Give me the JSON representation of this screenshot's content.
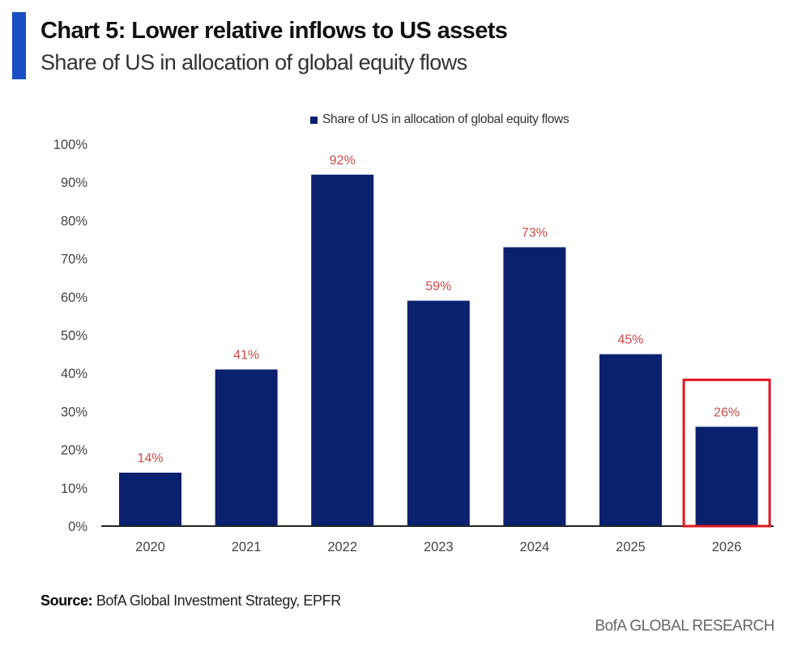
{
  "header": {
    "title": "Chart 5: Lower relative inflows to US assets",
    "subtitle": "Share of US in allocation of global equity flows"
  },
  "colors": {
    "accent": "#1a4fc4",
    "bar": "#0a2170",
    "data_label": "#d04a4a",
    "highlight_box": "#e0141e",
    "axis_line": "#222222",
    "tick_label": "#444444"
  },
  "chart_data": {
    "type": "bar",
    "title": "Chart 5: Lower relative inflows to US assets",
    "subtitle": "Share of US in allocation of global equity flows",
    "categories": [
      "2020",
      "2021",
      "2022",
      "2023",
      "2024",
      "2025",
      "2026"
    ],
    "series": [
      {
        "name": "Share of US in allocation of global equity flows",
        "values": [
          14,
          41,
          92,
          59,
          73,
          45,
          26
        ],
        "labels": [
          "14%",
          "41%",
          "92%",
          "59%",
          "73%",
          "45%",
          "26%"
        ]
      }
    ],
    "xlabel": "",
    "ylabel": "",
    "ylim": [
      0,
      100
    ],
    "yticks": [
      0,
      10,
      20,
      30,
      40,
      50,
      60,
      70,
      80,
      90,
      100
    ],
    "ytick_labels": [
      "0%",
      "10%",
      "20%",
      "30%",
      "40%",
      "50%",
      "60%",
      "70%",
      "80%",
      "90%",
      "100%"
    ],
    "grid": false,
    "legend": "top-center",
    "annotations": [
      {
        "type": "highlight-box",
        "category": "2026",
        "color": "#e0141e"
      }
    ]
  },
  "legend": {
    "label": "Share of US in allocation of global equity flows"
  },
  "footer": {
    "source_label": "Source:",
    "source_text": " BofA Global Investment Strategy, EPFR",
    "brand": "BofA GLOBAL RESEARCH"
  }
}
